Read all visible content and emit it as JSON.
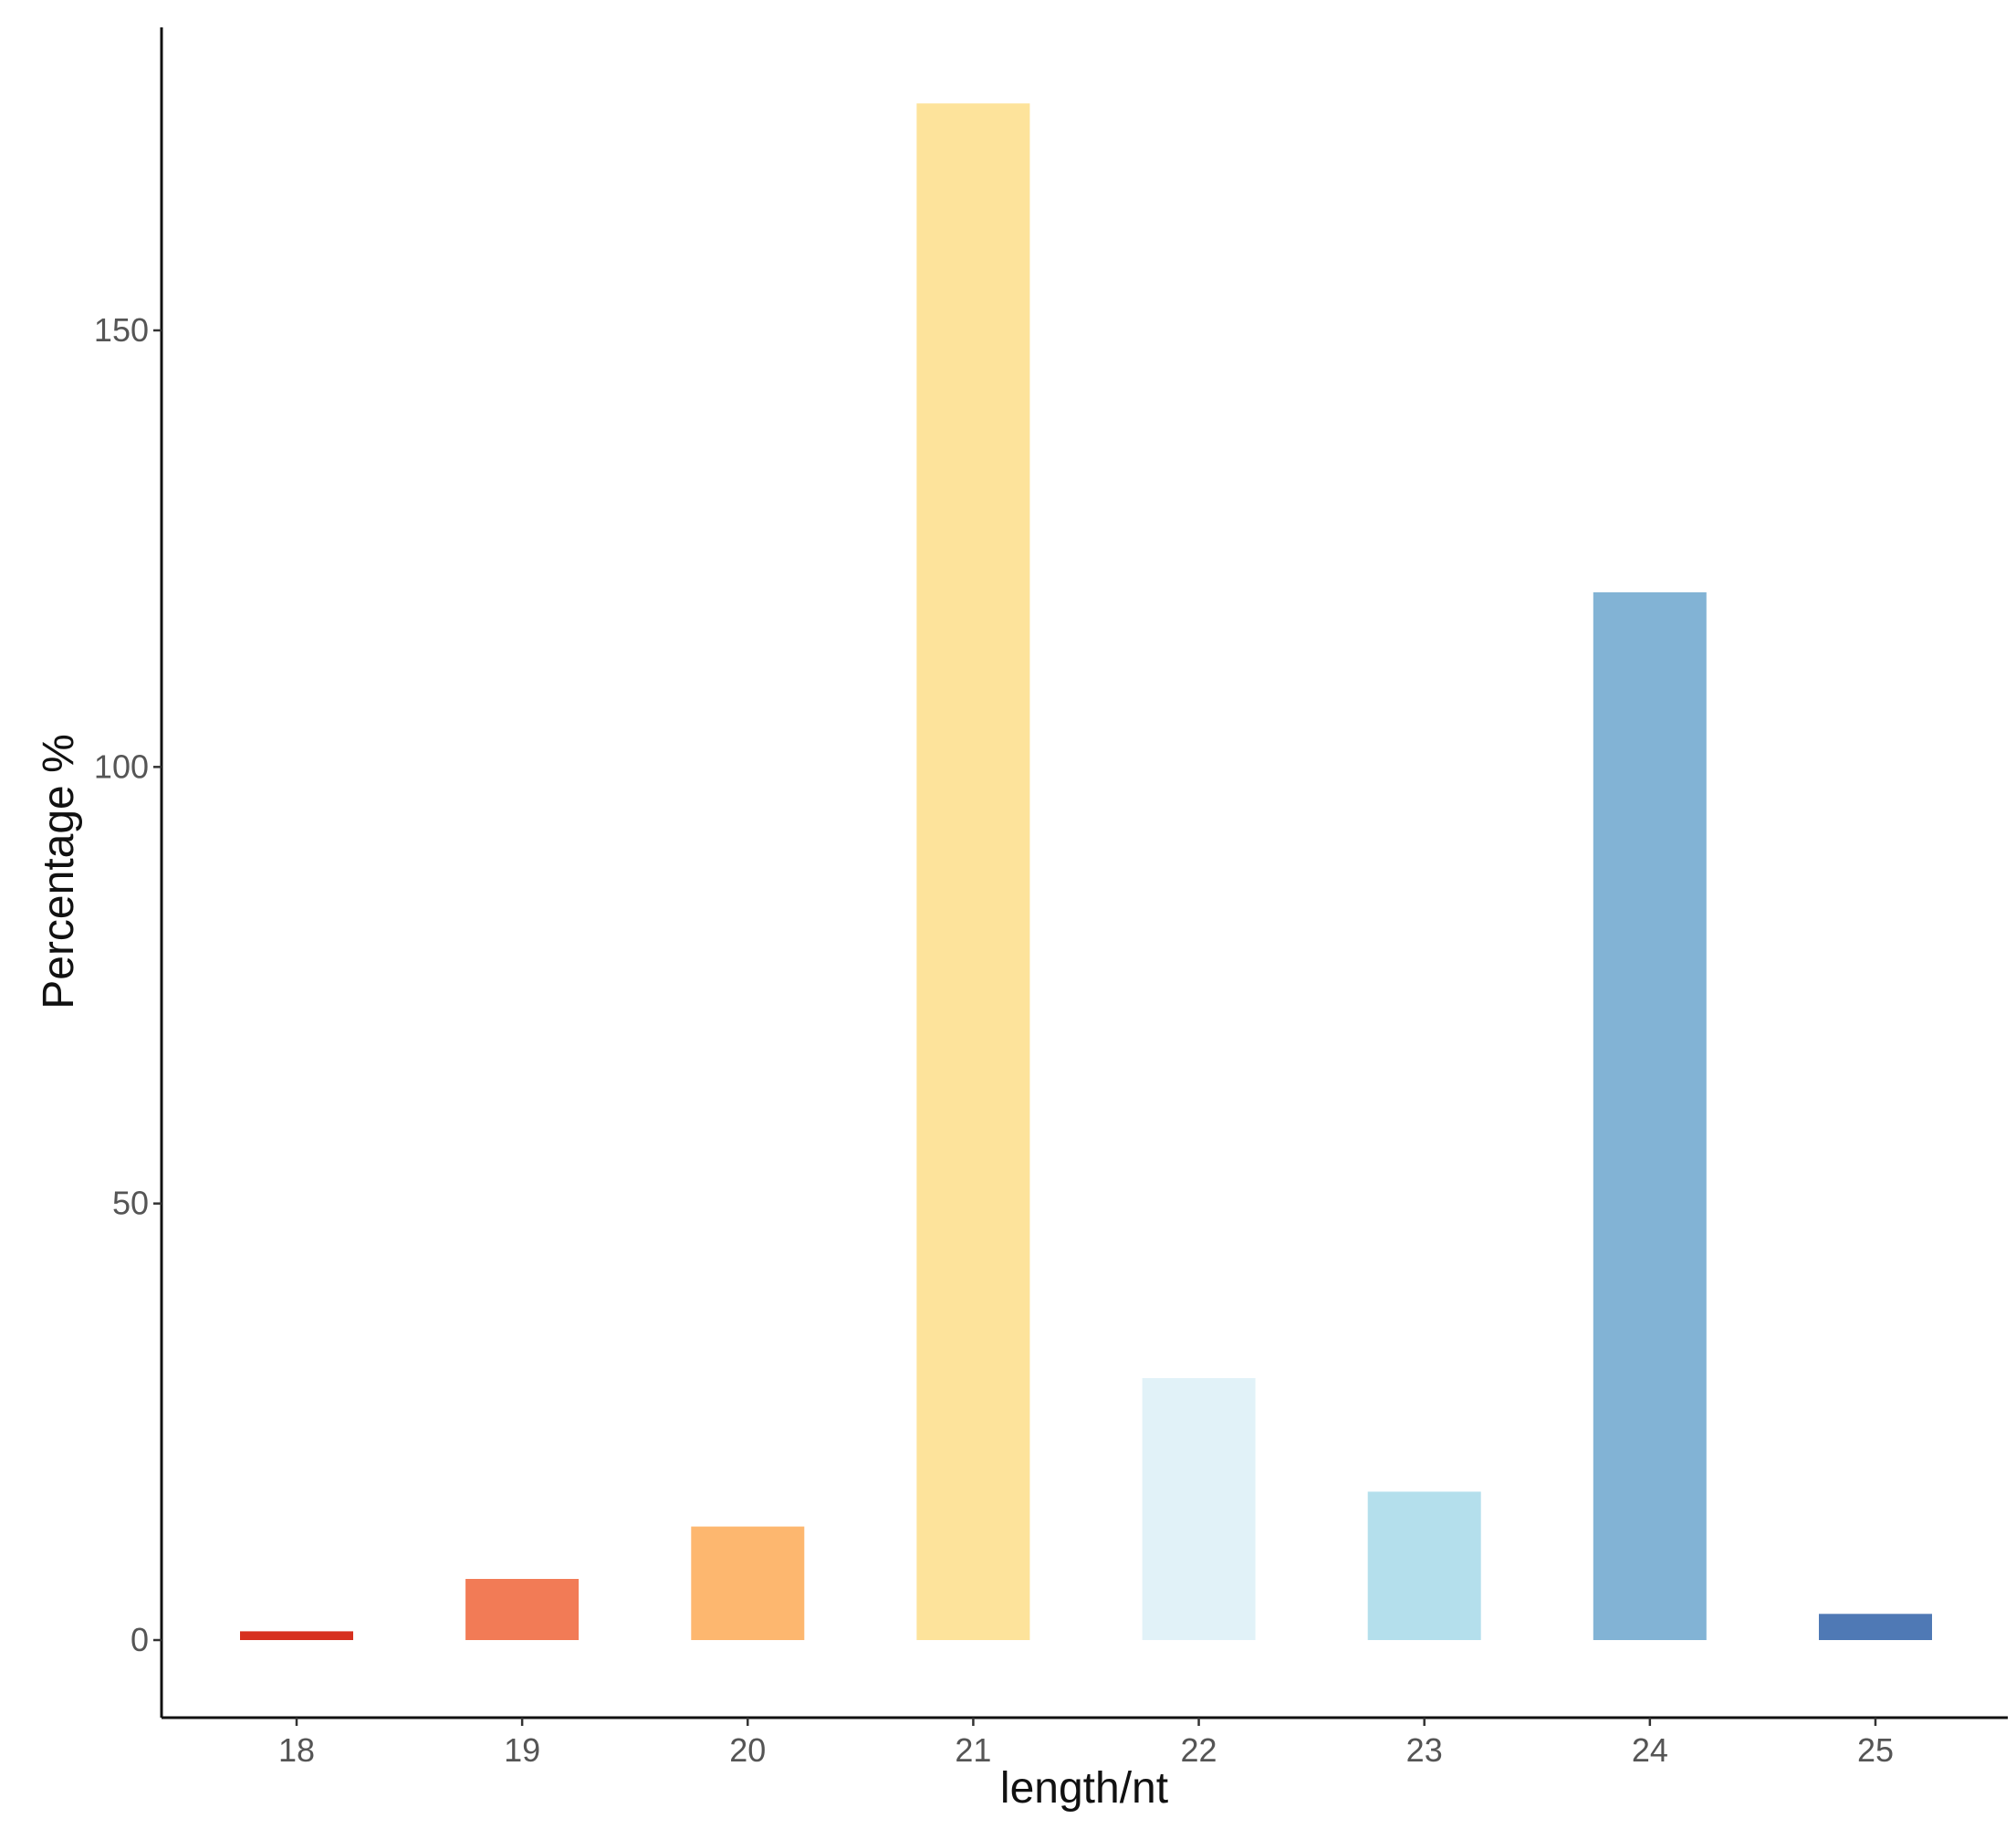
{
  "chart_data": {
    "type": "bar",
    "title": "",
    "xlabel": "length/nt",
    "ylabel": "Percentage %",
    "categories": [
      "18",
      "19",
      "20",
      "21",
      "22",
      "23",
      "24",
      "25"
    ],
    "values": [
      1.0,
      7.0,
      13.0,
      176.0,
      30.0,
      17.0,
      120.0,
      3.0
    ],
    "colors": [
      "#d7301f",
      "#f27b56",
      "#fdb76f",
      "#fde39b",
      "#e1f2f8",
      "#b4dfec",
      "#82b3d5",
      "#4f79b5"
    ],
    "yticks": [
      0,
      50,
      100,
      150
    ],
    "ylim": [
      -7.5,
      184
    ],
    "grid": false,
    "legend": "none"
  }
}
